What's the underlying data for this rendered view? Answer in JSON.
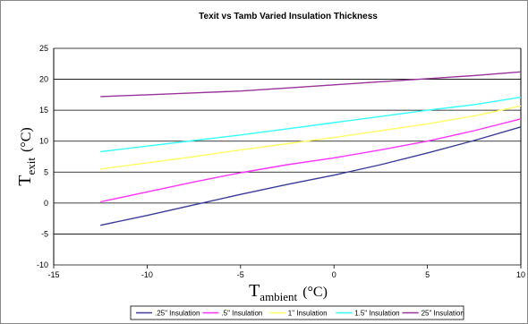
{
  "chart_data": {
    "type": "line",
    "title": "Texit vs Tamb Varied Insulation Thickness",
    "xlabel": {
      "main": "T",
      "sub": "ambient",
      "unit": "(°C)"
    },
    "ylabel": {
      "main": "T",
      "sub": "exit",
      "unit": "(°C)"
    },
    "xlim": [
      -15,
      10
    ],
    "ylim": [
      -10,
      25
    ],
    "xticks": [
      -15,
      -10,
      -5,
      0,
      5,
      10
    ],
    "yticks": [
      -10,
      -5,
      0,
      5,
      10,
      15,
      20,
      25
    ],
    "grid": "horizontal major",
    "legend_position": "bottom",
    "x": [
      -12.5,
      -10,
      -7.5,
      -5,
      -2.5,
      0,
      2.5,
      5,
      7.5,
      10
    ],
    "series": [
      {
        "name": ".25\" Insulation",
        "color": "#3b3b9a",
        "values": [
          -3.6,
          -2.0,
          -0.3,
          1.4,
          3.0,
          4.5,
          6.2,
          8.1,
          10.1,
          12.3
        ]
      },
      {
        "name": ".5\" Insulation",
        "color": "#ff33ff",
        "values": [
          0.2,
          1.8,
          3.4,
          4.9,
          6.2,
          7.3,
          8.6,
          10.0,
          11.7,
          13.6
        ]
      },
      {
        "name": "1\" Insulation",
        "color": "#ffff66",
        "values": [
          5.5,
          6.5,
          7.5,
          8.6,
          9.6,
          10.6,
          11.7,
          12.8,
          14.1,
          15.7
        ]
      },
      {
        "name": "1.5\" Insulation",
        "color": "#33ffff",
        "values": [
          8.3,
          9.2,
          10.1,
          11.0,
          12.0,
          13.0,
          14.0,
          15.0,
          15.9,
          17.1
        ]
      },
      {
        "name": "25\" Insulation",
        "color": "#993399",
        "values": [
          17.2,
          17.5,
          17.8,
          18.1,
          18.6,
          19.1,
          19.6,
          20.1,
          20.6,
          21.2
        ]
      }
    ]
  }
}
